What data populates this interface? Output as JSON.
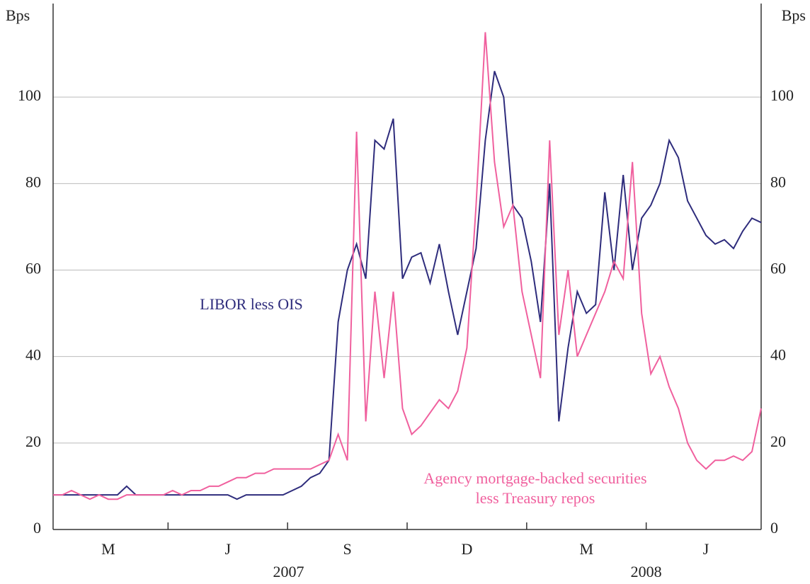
{
  "chart_data": {
    "type": "line",
    "ylabel": "Bps",
    "y2label": "Bps",
    "categories": [
      null,
      null,
      null,
      null,
      null,
      null,
      "M",
      null,
      null,
      null,
      null,
      null,
      null,
      null,
      null,
      null,
      null,
      null,
      null,
      "J",
      null,
      null,
      null,
      null,
      null,
      null,
      null,
      null,
      null,
      null,
      null,
      null,
      "S",
      null,
      null,
      null,
      null,
      null,
      null,
      null,
      null,
      null,
      null,
      null,
      null,
      "D",
      null,
      null,
      null,
      null,
      null,
      null,
      null,
      null,
      null,
      null,
      null,
      null,
      "M",
      null,
      null,
      null,
      null,
      null,
      null,
      null,
      null,
      null,
      null,
      null,
      null,
      "J",
      null,
      null,
      null,
      null,
      null,
      null
    ],
    "year_labels": [
      "2007",
      "2008"
    ],
    "series": [
      {
        "name": "LIBOR less OIS",
        "color": "#2e2c7c",
        "values": [
          8,
          8,
          8,
          8,
          8,
          8,
          8,
          8,
          10,
          8,
          8,
          8,
          8,
          8,
          8,
          8,
          8,
          8,
          8,
          8,
          7,
          8,
          8,
          8,
          8,
          8,
          9,
          10,
          12,
          13,
          16,
          48,
          60,
          66,
          58,
          90,
          88,
          95,
          58,
          63,
          64,
          57,
          66,
          55,
          45,
          55,
          65,
          90,
          106,
          100,
          75,
          72,
          62,
          48,
          80,
          25,
          42,
          55,
          50,
          52,
          78,
          60,
          82,
          60,
          72,
          75,
          80,
          90,
          86,
          76,
          72,
          68,
          66,
          67,
          65,
          69,
          72,
          71
        ]
      },
      {
        "name": "Agency mortgage-backed securities less Treasury repos",
        "name_lines": [
          "Agency mortgage-backed securities",
          "less Treasury repos"
        ],
        "color": "#f0609e",
        "values": [
          8,
          8,
          9,
          8,
          7,
          8,
          7,
          7,
          8,
          8,
          8,
          8,
          8,
          9,
          8,
          9,
          9,
          10,
          10,
          11,
          12,
          12,
          13,
          13,
          14,
          14,
          14,
          14,
          14,
          15,
          16,
          22,
          16,
          92,
          25,
          55,
          35,
          55,
          28,
          22,
          24,
          27,
          30,
          28,
          32,
          42,
          75,
          115,
          85,
          70,
          75,
          55,
          45,
          35,
          90,
          45,
          60,
          40,
          45,
          50,
          55,
          62,
          58,
          85,
          50,
          36,
          40,
          33,
          28,
          20,
          16,
          14,
          16,
          16,
          17,
          16,
          18,
          28
        ]
      }
    ],
    "ylim": [
      0,
      120
    ],
    "yticks": [
      0,
      20,
      40,
      60,
      80,
      100
    ],
    "y2lim": [
      0,
      120
    ],
    "y2ticks": [
      0,
      20,
      40,
      60,
      80,
      100
    ],
    "grid": true
  }
}
